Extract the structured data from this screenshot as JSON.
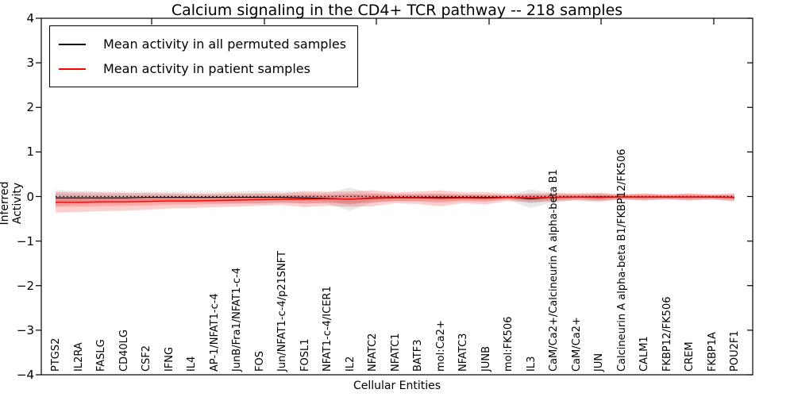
{
  "chart_data": {
    "type": "line",
    "title": "Calcium signaling in the CD4+ TCR pathway -- 218 samples",
    "xlabel": "Cellular Entities",
    "ylabel": "Inferred Activity",
    "ylim": [
      -4,
      4
    ],
    "yticks": [
      "4",
      "3",
      "2",
      "1",
      "0",
      "−1",
      "−2",
      "−3",
      "−4"
    ],
    "grid": false,
    "legend_position": "upper left",
    "zero_line": {
      "value": 0,
      "style": "dotted",
      "color": "#000000"
    },
    "categories": [
      "PTGS2",
      "IL2RA",
      "FASLG",
      "CD40LG",
      "CSF2",
      "IFNG",
      "IL4",
      "AP-1/NFAT1-c-4",
      "JunB/Fra1/NFAT1-c-4",
      "FOS",
      "Jun/NFAT1-c-4/p21SNFT",
      "FOSL1",
      "NFAT1-c-4/ICER1",
      "IL2",
      "NFATC2",
      "NFATC1",
      "BATF3",
      "mol:Ca2+",
      "NFATC3",
      "JUNB",
      "mol:FK506",
      "IL3",
      "CaM/Ca2+/Calcineurin A alpha-beta B1",
      "CaM/Ca2+",
      "JUN",
      "Calcineurin A alpha-beta B1/FKBP12/FK506",
      "CALM1",
      "FKBP12/FK506",
      "CREM",
      "FKBP1A",
      "POU2F1"
    ],
    "series": [
      {
        "name": "Mean activity in all permuted samples",
        "line_color": "#000000",
        "band_color": "rgba(120,120,120,0.16)",
        "mean": [
          -0.03,
          -0.03,
          -0.03,
          -0.03,
          -0.02,
          -0.02,
          -0.02,
          -0.02,
          -0.02,
          -0.02,
          -0.02,
          -0.03,
          -0.04,
          -0.06,
          -0.03,
          -0.02,
          -0.02,
          -0.02,
          -0.02,
          -0.02,
          -0.02,
          -0.05,
          -0.02,
          -0.01,
          -0.01,
          -0.01,
          -0.01,
          -0.01,
          -0.01,
          -0.01,
          -0.02
        ],
        "band_outer": [
          0.18,
          0.15,
          0.14,
          0.13,
          0.12,
          0.12,
          0.11,
          0.12,
          0.13,
          0.15,
          0.13,
          0.12,
          0.12,
          0.26,
          0.1,
          0.08,
          0.08,
          0.08,
          0.07,
          0.07,
          0.06,
          0.21,
          0.1,
          0.07,
          0.09,
          0.06,
          0.08,
          0.06,
          0.08,
          0.06,
          0.1
        ],
        "band_inner": [
          0.09,
          0.08,
          0.07,
          0.07,
          0.06,
          0.06,
          0.06,
          0.06,
          0.07,
          0.08,
          0.07,
          0.06,
          0.06,
          0.13,
          0.05,
          0.04,
          0.04,
          0.04,
          0.04,
          0.04,
          0.03,
          0.11,
          0.05,
          0.04,
          0.05,
          0.03,
          0.04,
          0.03,
          0.04,
          0.03,
          0.05
        ]
      },
      {
        "name": "Mean activity in patient samples",
        "line_color": "#ff0000",
        "band_color": "rgba(255,0,0,0.19)",
        "mean": [
          -0.13,
          -0.13,
          -0.12,
          -0.12,
          -0.11,
          -0.1,
          -0.1,
          -0.09,
          -0.08,
          -0.07,
          -0.06,
          -0.06,
          -0.05,
          -0.06,
          -0.04,
          -0.03,
          -0.03,
          -0.04,
          -0.03,
          -0.04,
          -0.02,
          -0.03,
          -0.02,
          -0.01,
          -0.02,
          -0.01,
          -0.01,
          -0.01,
          -0.01,
          -0.01,
          -0.02
        ],
        "band_outer": [
          0.23,
          0.22,
          0.21,
          0.2,
          0.19,
          0.17,
          0.16,
          0.15,
          0.15,
          0.14,
          0.13,
          0.18,
          0.16,
          0.17,
          0.18,
          0.12,
          0.14,
          0.18,
          0.12,
          0.14,
          0.08,
          0.1,
          0.1,
          0.08,
          0.1,
          0.06,
          0.08,
          0.06,
          0.08,
          0.06,
          0.08
        ],
        "band_inner": [
          0.1,
          0.1,
          0.1,
          0.09,
          0.09,
          0.08,
          0.08,
          0.08,
          0.08,
          0.08,
          0.07,
          0.1,
          0.09,
          0.1,
          0.1,
          0.07,
          0.08,
          0.1,
          0.07,
          0.08,
          0.04,
          0.06,
          0.06,
          0.05,
          0.06,
          0.04,
          0.05,
          0.04,
          0.05,
          0.04,
          0.05
        ]
      }
    ]
  }
}
